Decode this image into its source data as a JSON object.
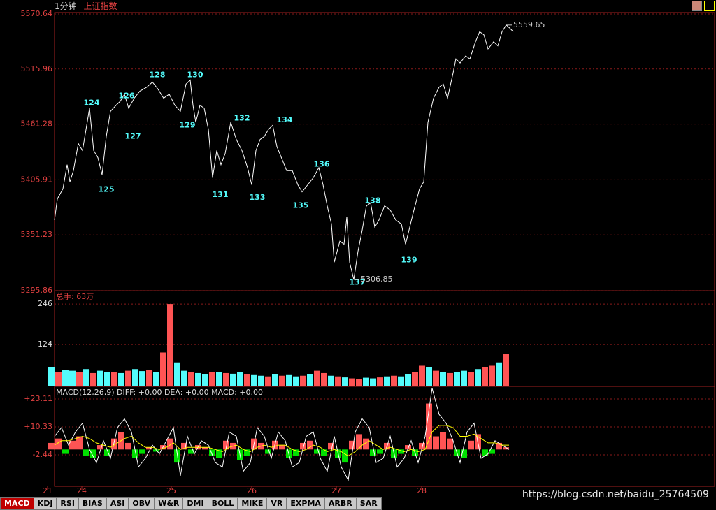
{
  "window": {
    "period": "1分钟",
    "index": "上证指数"
  },
  "tabs": [
    "MACD",
    "KDJ",
    "RSI",
    "BIAS",
    "ASI",
    "OBV",
    "W&R",
    "DMI",
    "BOLL",
    "MIKE",
    "VR",
    "EXPMA",
    "ARBR",
    "SAR"
  ],
  "watermark": "https://blog.csdn.net/baidu_25764509",
  "chart_data": [
    {
      "type": "line",
      "color": "#ffffff",
      "grid": true,
      "x": [
        20,
        28,
        44,
        56,
        64,
        74,
        88,
        100,
        112,
        120,
        132,
        144,
        156,
        168,
        180,
        196,
        208,
        220,
        232,
        248,
        264,
        284,
        300,
        316,
        332,
        348,
        364,
        380,
        396,
        408,
        416,
        424,
        436,
        448,
        460,
        472,
        484,
        496,
        508,
        524,
        540,
        556,
        572,
        584,
        596,
        608,
        620,
        632,
        644,
        656,
        684,
        700,
        716,
        728,
        744,
        760,
        776,
        788,
        800,
        812,
        820,
        836,
        848,
        856,
        864,
        876,
        888,
        900,
        912,
        924,
        936,
        948,
        964,
        980,
        996,
        1012,
        1024,
        1036,
        1048,
        1064,
        1076,
        1088,
        1104,
        1120,
        1132,
        1144,
        1160,
        1168,
        1180,
        1196,
        1208,
        1224,
        1236,
        1248,
        1260,
        1276,
        1288,
        1300,
        1312,
        1324,
        1332
      ],
      "values": [
        5366,
        5387,
        5397,
        5421,
        5404,
        5415,
        5442,
        5435,
        5460,
        5477,
        5435,
        5428,
        5411,
        5449,
        5474,
        5480,
        5484,
        5491,
        5477,
        5487,
        5494,
        5498,
        5503,
        5496,
        5487,
        5491,
        5480,
        5474,
        5501,
        5505,
        5480,
        5463,
        5480,
        5477,
        5456,
        5408,
        5435,
        5421,
        5432,
        5463,
        5446,
        5435,
        5418,
        5401,
        5435,
        5446,
        5449,
        5456,
        5460,
        5439,
        5415,
        5415,
        5401,
        5394,
        5401,
        5408,
        5418,
        5401,
        5380,
        5362,
        5324,
        5345,
        5342,
        5369,
        5324,
        5306.85,
        5335,
        5356,
        5380,
        5383,
        5359,
        5366,
        5380,
        5376,
        5366,
        5362,
        5342,
        5359,
        5376,
        5397,
        5404,
        5463,
        5487,
        5498,
        5501,
        5487,
        5512,
        5526,
        5522,
        5529,
        5526,
        5543,
        5553,
        5550,
        5536,
        5543,
        5539,
        5553,
        5559.65,
        5556,
        5553
      ],
      "xlim": [
        0,
        1904
      ],
      "ylim": [
        5295.86,
        5570.64
      ],
      "yticks": [
        5570.64,
        5515.96,
        5461.28,
        5405.91,
        5351.23,
        5295.86
      ],
      "annotations": [
        {
          "text": "124",
          "x": 126,
          "y": 5482
        },
        {
          "text": "125",
          "x": 168,
          "y": 5396
        },
        {
          "text": "126",
          "x": 226,
          "y": 5489
        },
        {
          "text": "127",
          "x": 244,
          "y": 5449
        },
        {
          "text": "128",
          "x": 314,
          "y": 5510
        },
        {
          "text": "129",
          "x": 400,
          "y": 5460
        },
        {
          "text": "130",
          "x": 422,
          "y": 5510
        },
        {
          "text": "131",
          "x": 494,
          "y": 5391
        },
        {
          "text": "132",
          "x": 556,
          "y": 5467
        },
        {
          "text": "133",
          "x": 600,
          "y": 5388
        },
        {
          "text": "134",
          "x": 678,
          "y": 5465
        },
        {
          "text": "135",
          "x": 724,
          "y": 5380
        },
        {
          "text": "136",
          "x": 784,
          "y": 5421
        },
        {
          "text": "137",
          "x": 886,
          "y": 5304
        },
        {
          "text": "138",
          "x": 930,
          "y": 5385
        },
        {
          "text": "139",
          "x": 1034,
          "y": 5326
        }
      ],
      "extremes": [
        {
          "text": "5306.85",
          "x": 876,
          "y": 5306.85
        },
        {
          "text": "5559.65",
          "x": 1312,
          "y": 5559.65
        }
      ]
    },
    {
      "type": "bar",
      "title": "总手: 63万",
      "grid": true,
      "x": [
        20,
        40,
        60,
        80,
        100,
        120,
        140,
        160,
        180,
        200,
        220,
        240,
        260,
        280,
        300,
        320,
        340,
        360,
        380,
        400,
        420,
        440,
        460,
        480,
        500,
        520,
        540,
        560,
        580,
        600,
        620,
        640,
        660,
        680,
        700,
        720,
        740,
        760,
        780,
        800,
        820,
        840,
        860,
        880,
        900,
        920,
        940,
        960,
        980,
        1000,
        1020,
        1040,
        1060,
        1080,
        1100,
        1120,
        1140,
        1160,
        1180,
        1200,
        1220,
        1240,
        1260,
        1280,
        1300,
        1320
      ],
      "values": [
        55,
        42,
        48,
        45,
        40,
        50,
        38,
        45,
        42,
        40,
        38,
        45,
        50,
        44,
        48,
        40,
        100,
        246,
        70,
        45,
        40,
        38,
        35,
        42,
        40,
        38,
        36,
        40,
        35,
        32,
        30,
        28,
        35,
        30,
        32,
        28,
        30,
        35,
        45,
        38,
        30,
        28,
        25,
        22,
        20,
        24,
        22,
        25,
        28,
        30,
        28,
        35,
        40,
        60,
        55,
        45,
        40,
        38,
        42,
        45,
        40,
        50,
        55,
        60,
        70,
        95
      ],
      "colors": [
        "#ff5454",
        "#54fcfc"
      ],
      "color_index": [
        1,
        0,
        1,
        1,
        0,
        1,
        0,
        1,
        1,
        0,
        1,
        0,
        1,
        1,
        0,
        1,
        0,
        0,
        1,
        1,
        0,
        1,
        1,
        0,
        1,
        0,
        1,
        1,
        0,
        1,
        1,
        0,
        1,
        0,
        1,
        1,
        0,
        1,
        0,
        0,
        1,
        0,
        1,
        0,
        0,
        1,
        1,
        0,
        1,
        0,
        1,
        1,
        0,
        0,
        1,
        0,
        1,
        0,
        1,
        1,
        0,
        1,
        0,
        0,
        1,
        0
      ],
      "xlim": [
        0,
        1904
      ],
      "ylim": [
        0,
        282
      ],
      "yticks": [
        246,
        124
      ]
    },
    {
      "type": "macd",
      "title": "MACD(12,26,9) DIFF: +0.00 DEA: +0.00 MACD: +0.00",
      "grid": true,
      "x": [
        20,
        40,
        60,
        80,
        100,
        120,
        140,
        160,
        180,
        200,
        220,
        240,
        260,
        280,
        300,
        320,
        340,
        360,
        380,
        400,
        420,
        440,
        460,
        480,
        500,
        520,
        540,
        560,
        580,
        600,
        620,
        640,
        660,
        680,
        700,
        720,
        740,
        760,
        780,
        800,
        820,
        840,
        860,
        880,
        900,
        920,
        940,
        960,
        980,
        1000,
        1020,
        1040,
        1060,
        1080,
        1100,
        1120,
        1140,
        1160,
        1180,
        1200,
        1220,
        1240,
        1260,
        1280,
        1300,
        1320
      ],
      "histogram": [
        3,
        5,
        -2,
        4,
        6,
        -3,
        -4,
        2,
        -3,
        5,
        8,
        3,
        -4,
        -2,
        1,
        -1,
        2,
        5,
        -6,
        3,
        -2,
        2,
        1,
        -3,
        -4,
        4,
        3,
        -5,
        -3,
        5,
        3,
        -2,
        4,
        2,
        -4,
        -3,
        3,
        4,
        -2,
        -3,
        3,
        -4,
        -6,
        4,
        7,
        5,
        -3,
        -2,
        3,
        -4,
        -2,
        2,
        -3,
        3,
        21,
        6,
        8,
        5,
        -3,
        -4,
        4,
        7,
        -3,
        -2,
        3,
        1
      ],
      "up_color": "#ff5454",
      "down_color": "#00e000",
      "series": [
        {
          "name": "DIFF",
          "color": "#ffffff",
          "values": [
            6,
            10,
            2,
            8,
            12,
            0,
            -6,
            4,
            -4,
            10,
            14,
            8,
            -8,
            -4,
            2,
            -2,
            4,
            10,
            -12,
            6,
            -2,
            4,
            2,
            -6,
            -8,
            8,
            6,
            -10,
            -6,
            10,
            6,
            -4,
            8,
            4,
            -8,
            -6,
            6,
            8,
            -4,
            -10,
            6,
            -8,
            -14,
            8,
            14,
            10,
            -6,
            -4,
            6,
            -8,
            -4,
            4,
            -6,
            6,
            28,
            16,
            12,
            4,
            -6,
            8,
            12,
            -4,
            -2,
            4,
            2,
            0
          ]
        },
        {
          "name": "DEA",
          "color": "#ffff00",
          "values": [
            2,
            4,
            4,
            5,
            6,
            5,
            3,
            2,
            1,
            3,
            5,
            6,
            3,
            1,
            1,
            0,
            1,
            3,
            0,
            1,
            1,
            1,
            1,
            0,
            -1,
            1,
            2,
            0,
            -1,
            1,
            2,
            1,
            2,
            2,
            0,
            -1,
            0,
            2,
            1,
            -1,
            0,
            -1,
            -3,
            -1,
            2,
            4,
            2,
            0,
            1,
            0,
            -1,
            0,
            -1,
            0,
            8,
            11,
            11,
            10,
            6,
            6,
            7,
            5,
            3,
            3,
            2,
            2
          ]
        }
      ],
      "xlim": [
        0,
        1904
      ],
      "ylim": [
        -16.5,
        28.2
      ],
      "yticks": [
        {
          "value": 23.11,
          "label": "+23.11"
        },
        {
          "value": 10.33,
          "label": "+10.33"
        },
        -2.44
      ],
      "xticks": [
        {
          "value": 0,
          "label": "21"
        },
        {
          "value": 98,
          "label": "24"
        },
        {
          "value": 354,
          "label": "25"
        },
        {
          "value": 584,
          "label": "26"
        },
        {
          "value": 826,
          "label": "27"
        },
        {
          "value": 1070,
          "label": "28"
        }
      ]
    }
  ]
}
